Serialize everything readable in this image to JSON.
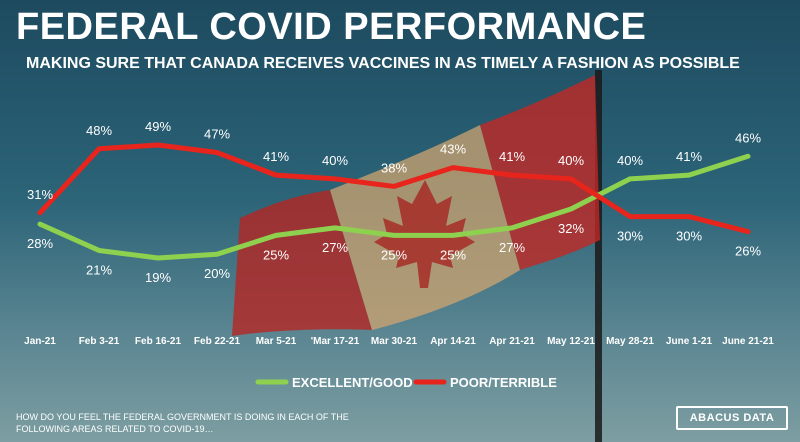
{
  "title": "FEDERAL COVID PERFORMANCE",
  "subtitle": "MAKING SURE THAT CANADA RECEIVES VACCINES IN AS TIMELY A FASHION AS POSSIBLE",
  "footnote": "HOW DO YOU FEEL THE FEDERAL GOVERNMENT IS DOING IN EACH OF THE FOLLOWING AREAS RELATED TO COVID-19…",
  "brand": "ABACUS DATA",
  "chart_data": {
    "type": "line",
    "categories": [
      "Jan-21",
      "Feb 3-21",
      "Feb 16-21",
      "Feb 22-21",
      "Mar 5-21",
      "'Mar 17-21",
      "Mar 30-21",
      "Apr 14-21",
      "Apr 21-21",
      "May 12-21",
      "May 28-21",
      "June 1-21",
      "June 21-21"
    ],
    "series": [
      {
        "name": "EXCELLENT/GOOD",
        "color": "#8ed14f",
        "values": [
          28,
          21,
          19,
          20,
          25,
          27,
          25,
          25,
          27,
          32,
          40,
          41,
          46
        ],
        "labels": [
          "28%",
          "21%",
          "19%",
          "20%",
          "25%",
          "27%",
          "25%",
          "25%",
          "27%",
          "32%",
          "40%",
          "41%",
          "46%"
        ]
      },
      {
        "name": "POOR/TERRIBLE",
        "color": "#e8251c",
        "values": [
          31,
          48,
          49,
          47,
          41,
          40,
          38,
          43,
          41,
          40,
          30,
          30,
          26
        ],
        "labels": [
          "31%",
          "48%",
          "49%",
          "47%",
          "41%",
          "40%",
          "38%",
          "43%",
          "41%",
          "40%",
          "30%",
          "30%",
          "26%"
        ]
      }
    ],
    "legend_position": "bottom-center",
    "grid": false
  }
}
